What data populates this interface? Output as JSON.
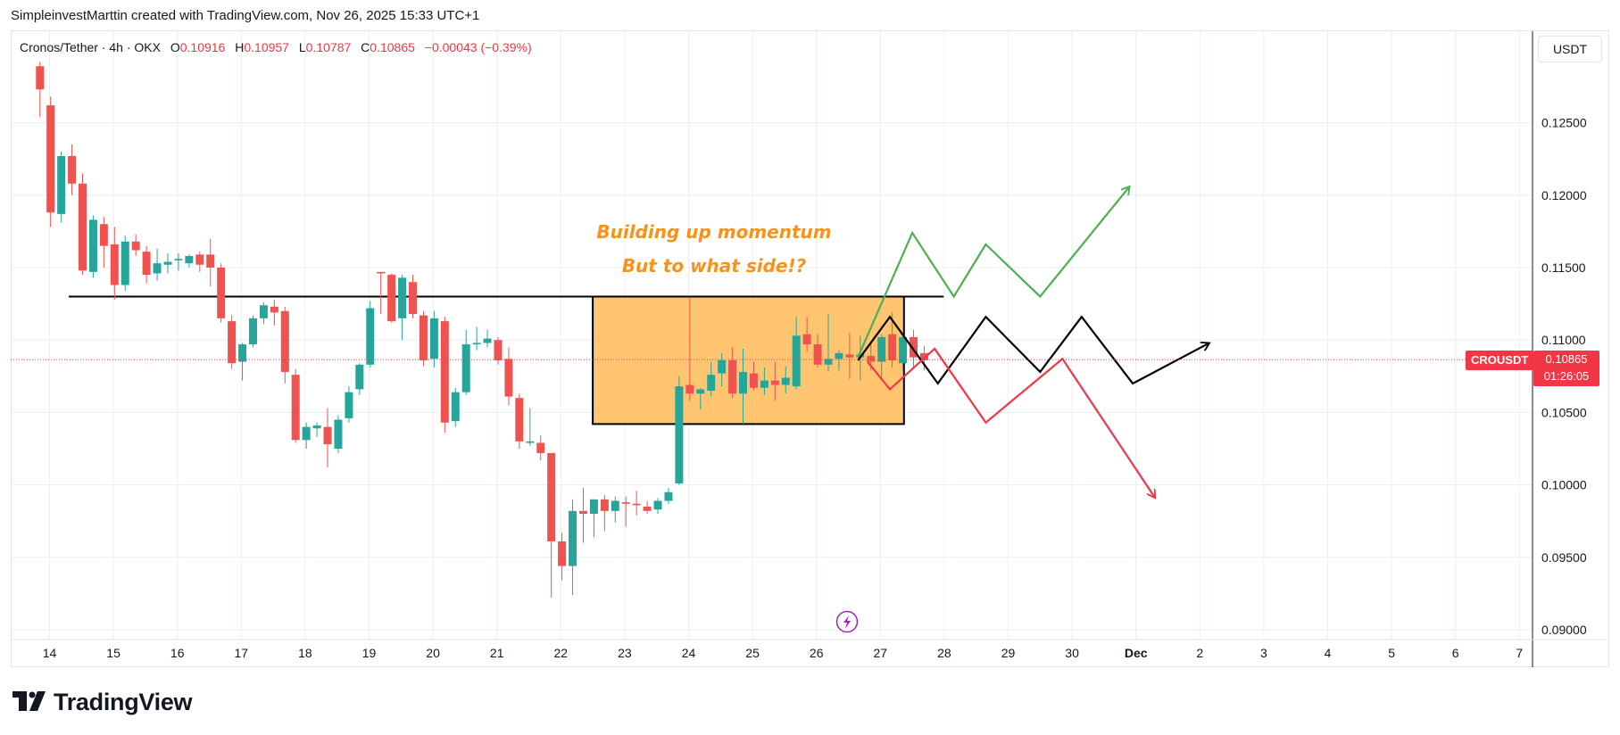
{
  "header": {
    "credit": "SimpleinvestMarttin created with TradingView.com, Nov 26, 2025 15:33 UTC+1"
  },
  "legend": {
    "pair": "Cronos/Tether · 4h · OKX",
    "open_label": "O",
    "open": "0.10916",
    "high_label": "H",
    "high": "0.10957",
    "low_label": "L",
    "low": "0.10787",
    "close_label": "C",
    "close": "0.10865",
    "change": "−0.00043 (−0.39%)"
  },
  "currency_selector": "USDT",
  "last_price": {
    "symbol": "CROUSDT",
    "price": "0.10865",
    "countdown": "01:26:05"
  },
  "branding": {
    "logo_text": "TradingView"
  },
  "colors": {
    "up": "#26a69a",
    "down": "#ef5350",
    "grid": "#e7f1ef",
    "box_fill": "#ffb74d",
    "annotation": "#f7931a",
    "bull_path": "#4caf50",
    "bear_path": "#f23645",
    "neutral_path": "#000000"
  },
  "chart_data": {
    "type": "candlestick",
    "title": "Cronos/Tether · 4h · OKX",
    "ylim": [
      0.0895,
      0.1295
    ],
    "price_ticks": [
      "0.09000",
      "0.09500",
      "0.10000",
      "0.10500",
      "0.11000",
      "0.11500",
      "0.12000",
      "0.12500"
    ],
    "price_tick_values": [
      0.09,
      0.095,
      0.1,
      0.105,
      0.11,
      0.115,
      0.12,
      0.125
    ],
    "x_ticks": [
      "14",
      "15",
      "16",
      "17",
      "18",
      "19",
      "20",
      "21",
      "22",
      "23",
      "24",
      "25",
      "26",
      "27",
      "28",
      "29",
      "30",
      "Dec",
      "2",
      "3",
      "4",
      "5",
      "6",
      "7"
    ],
    "x_tick_day_index": [
      14,
      15,
      16,
      17,
      18,
      19,
      20,
      21,
      22,
      23,
      24,
      25,
      26,
      27,
      28,
      29,
      30,
      31,
      32,
      33,
      34,
      35,
      36,
      37
    ],
    "candles_ohlc": [
      [
        0.1289,
        0.1292,
        0.1254,
        0.1273
      ],
      [
        0.1262,
        0.1268,
        0.1178,
        0.1188
      ],
      [
        0.1187,
        0.123,
        0.1181,
        0.1227
      ],
      [
        0.1227,
        0.1235,
        0.12,
        0.1208
      ],
      [
        0.1208,
        0.1215,
        0.1145,
        0.1148
      ],
      [
        0.1147,
        0.1186,
        0.1143,
        0.1183
      ],
      [
        0.118,
        0.1185,
        0.115,
        0.1165
      ],
      [
        0.1166,
        0.1178,
        0.1128,
        0.1138
      ],
      [
        0.1138,
        0.1172,
        0.1134,
        0.1168
      ],
      [
        0.1168,
        0.1173,
        0.1158,
        0.1162
      ],
      [
        0.1161,
        0.1165,
        0.1139,
        0.1145
      ],
      [
        0.1146,
        0.1163,
        0.1141,
        0.1153
      ],
      [
        0.1152,
        0.116,
        0.1146,
        0.1154
      ],
      [
        0.1155,
        0.116,
        0.1148,
        0.1156
      ],
      [
        0.1153,
        0.1159,
        0.115,
        0.1158
      ],
      [
        0.1159,
        0.1161,
        0.1147,
        0.1152
      ],
      [
        0.1159,
        0.117,
        0.1137,
        0.115
      ],
      [
        0.115,
        0.1153,
        0.1112,
        0.1115
      ],
      [
        0.1113,
        0.1117,
        0.108,
        0.1084
      ],
      [
        0.1085,
        0.1098,
        0.1072,
        0.1097
      ],
      [
        0.1097,
        0.1117,
        0.1095,
        0.1115
      ],
      [
        0.1115,
        0.1126,
        0.1111,
        0.1124
      ],
      [
        0.1123,
        0.1128,
        0.111,
        0.1119
      ],
      [
        0.112,
        0.1123,
        0.107,
        0.1078
      ],
      [
        0.1076,
        0.108,
        0.1029,
        0.1031
      ],
      [
        0.1031,
        0.1043,
        0.1025,
        0.104
      ],
      [
        0.1039,
        0.1043,
        0.1033,
        0.1041
      ],
      [
        0.104,
        0.1053,
        0.1012,
        0.1028
      ],
      [
        0.1025,
        0.1048,
        0.1022,
        0.1045
      ],
      [
        0.1046,
        0.1068,
        0.1043,
        0.1064
      ],
      [
        0.1066,
        0.1084,
        0.1062,
        0.1083
      ],
      [
        0.1083,
        0.1127,
        0.1081,
        0.1122
      ],
      [
        0.1147,
        0.1147,
        0.1118,
        0.1146
      ],
      [
        0.1145,
        0.1146,
        0.1112,
        0.1113
      ],
      [
        0.1115,
        0.1145,
        0.11,
        0.1143
      ],
      [
        0.114,
        0.1145,
        0.1115,
        0.1118
      ],
      [
        0.1117,
        0.112,
        0.1082,
        0.1086
      ],
      [
        0.1087,
        0.112,
        0.1081,
        0.1115
      ],
      [
        0.1113,
        0.1116,
        0.1036,
        0.1043
      ],
      [
        0.1044,
        0.1067,
        0.104,
        0.1064
      ],
      [
        0.1064,
        0.1107,
        0.1062,
        0.1097
      ],
      [
        0.1097,
        0.1109,
        0.1093,
        0.1098
      ],
      [
        0.1098,
        0.1107,
        0.1095,
        0.1101
      ],
      [
        0.11,
        0.1102,
        0.1083,
        0.1086
      ],
      [
        0.1087,
        0.1095,
        0.1055,
        0.1061
      ],
      [
        0.106,
        0.1063,
        0.1025,
        0.103
      ],
      [
        0.1029,
        0.1053,
        0.1027,
        0.103
      ],
      [
        0.1029,
        0.1034,
        0.1017,
        0.1022
      ],
      [
        0.1022,
        0.1022,
        0.0922,
        0.0961
      ],
      [
        0.0961,
        0.0967,
        0.0934,
        0.0944
      ],
      [
        0.0944,
        0.099,
        0.0924,
        0.0982
      ],
      [
        0.0982,
        0.0998,
        0.096,
        0.098
      ],
      [
        0.098,
        0.0987,
        0.0964,
        0.099
      ],
      [
        0.099,
        0.0993,
        0.0968,
        0.0982
      ],
      [
        0.0982,
        0.0992,
        0.0974,
        0.0989
      ],
      [
        0.0988,
        0.0992,
        0.0971,
        0.0987
      ],
      [
        0.0987,
        0.0996,
        0.0979,
        0.0986
      ],
      [
        0.0985,
        0.0989,
        0.098,
        0.0982
      ],
      [
        0.0983,
        0.0991,
        0.098,
        0.0989
      ],
      [
        0.0989,
        0.0998,
        0.0987,
        0.0995
      ],
      [
        0.1001,
        0.1075,
        0.1,
        0.1068
      ],
      [
        0.1069,
        0.1129,
        0.1058,
        0.1063
      ],
      [
        0.1063,
        0.1067,
        0.1052,
        0.1066
      ],
      [
        0.1065,
        0.1085,
        0.1061,
        0.1076
      ],
      [
        0.1077,
        0.1091,
        0.1068,
        0.1086
      ],
      [
        0.1086,
        0.1095,
        0.106,
        0.1063
      ],
      [
        0.1063,
        0.1094,
        0.1042,
        0.1078
      ],
      [
        0.1077,
        0.1085,
        0.1065,
        0.1067
      ],
      [
        0.1067,
        0.1081,
        0.1062,
        0.1072
      ],
      [
        0.1072,
        0.1085,
        0.1058,
        0.1069
      ],
      [
        0.1069,
        0.1082,
        0.1063,
        0.1074
      ],
      [
        0.1068,
        0.1116,
        0.1066,
        0.1103
      ],
      [
        0.1104,
        0.1116,
        0.1092,
        0.1097
      ],
      [
        0.1097,
        0.1104,
        0.1081,
        0.1083
      ],
      [
        0.1083,
        0.1118,
        0.1078,
        0.1087
      ],
      [
        0.1087,
        0.1093,
        0.1079,
        0.1091
      ],
      [
        0.109,
        0.1105,
        0.1073,
        0.1088
      ],
      [
        0.1088,
        0.1103,
        0.1072,
        0.109
      ],
      [
        0.1089,
        0.1099,
        0.1079,
        0.1085
      ],
      [
        0.1085,
        0.1104,
        0.1074,
        0.1102
      ],
      [
        0.1104,
        0.1119,
        0.1081,
        0.1086
      ],
      [
        0.1084,
        0.1105,
        0.1079,
        0.1102
      ],
      [
        0.1102,
        0.1107,
        0.1081,
        0.1088
      ],
      [
        0.1091,
        0.1096,
        0.1079,
        0.1086
      ]
    ],
    "first_candle_day": 13.85,
    "candle_spacing_days": 0.1667,
    "resistance_line": {
      "price": 0.113,
      "from_day": 14.3,
      "to_day": 27.99
    },
    "consolidation_box": {
      "from_day": 22.5,
      "to_day": 27.37,
      "top": 0.113,
      "bottom": 0.1042
    },
    "annotations": [
      "Building up momentum",
      "But to what side!?"
    ],
    "scenario_paths": {
      "bullish": [
        [
          26.65,
          0.1088
        ],
        [
          27.5,
          0.1174
        ],
        [
          28.15,
          0.113
        ],
        [
          28.65,
          0.1166
        ],
        [
          29.5,
          0.113
        ],
        [
          30.9,
          0.1206
        ]
      ],
      "neutral": [
        [
          26.65,
          0.1086
        ],
        [
          27.15,
          0.1116
        ],
        [
          27.9,
          0.107
        ],
        [
          28.65,
          0.1116
        ],
        [
          29.5,
          0.1078
        ],
        [
          30.15,
          0.1116
        ],
        [
          30.95,
          0.107
        ],
        [
          32.15,
          0.1098
        ]
      ],
      "bearish": [
        [
          26.8,
          0.1085
        ],
        [
          27.15,
          0.1066
        ],
        [
          27.85,
          0.1094
        ],
        [
          28.65,
          0.1043
        ],
        [
          29.85,
          0.1087
        ],
        [
          31.3,
          0.0991
        ]
      ]
    },
    "last_price_value": 0.10865
  }
}
